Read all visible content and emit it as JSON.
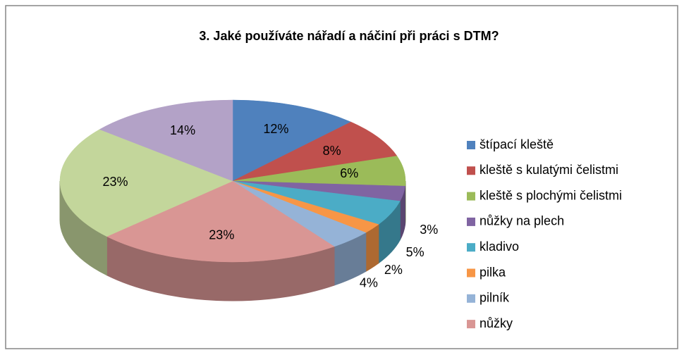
{
  "chart_data": {
    "type": "pie",
    "title": "3. Jaké používáte nářadí a náčiní při práci s DTM?",
    "categories": [
      "štípací kleště",
      "kleště s kulatými čelistmi",
      "kleště s plochými čelistmi",
      "nůžky na plech",
      "kladivo",
      "pilka",
      "pilník",
      "nůžky",
      null,
      null
    ],
    "values": [
      12,
      8,
      6,
      3,
      5,
      2,
      4,
      23,
      23,
      14
    ],
    "value_labels": [
      "12%",
      "8%",
      "6%",
      "3%",
      "5%",
      "2%",
      "4%",
      "23%",
      "23%",
      "14%"
    ],
    "colors": [
      "#4f81bd",
      "#c0504d",
      "#9bbb59",
      "#8064a2",
      "#4bacc6",
      "#f79646",
      "#95b3d7",
      "#d99694",
      "#c3d69b",
      "#b3a2c7"
    ],
    "legend": "right"
  }
}
